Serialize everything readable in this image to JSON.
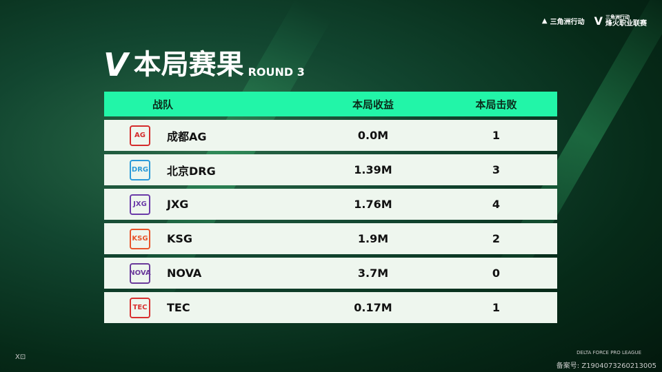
{
  "header": {
    "brand1": "三角洲行动",
    "brand2_top": "三角洲行动",
    "brand2": "烽火职业联赛"
  },
  "title": {
    "main": "本局赛果",
    "round": "ROUND 3"
  },
  "table": {
    "columns": [
      "战队",
      "本局收益",
      "本局击败"
    ],
    "rows": [
      {
        "team": "成都AG",
        "logo": "AG",
        "color": "#d42b2b",
        "earnings": "0.0M",
        "kills": "1"
      },
      {
        "team": "北京DRG",
        "logo": "DRG",
        "color": "#2a9ad8",
        "earnings": "1.39M",
        "kills": "3"
      },
      {
        "team": "JXG",
        "logo": "JXG",
        "color": "#6a3aa8",
        "earnings": "1.76M",
        "kills": "4"
      },
      {
        "team": "KSG",
        "logo": "KSG",
        "color": "#e8542a",
        "earnings": "1.9M",
        "kills": "2"
      },
      {
        "team": "NOVA",
        "logo": "NOVA",
        "color": "#6a3a9a",
        "earnings": "3.7M",
        "kills": "0"
      },
      {
        "team": "TEC",
        "logo": "TEC",
        "color": "#d83030",
        "earnings": "0.17M",
        "kills": "1"
      }
    ]
  },
  "footer": {
    "left": "X⊡",
    "league": "DELTA FORCE PRO LEAGUE",
    "record": "备案号: Z1904073260213005"
  }
}
